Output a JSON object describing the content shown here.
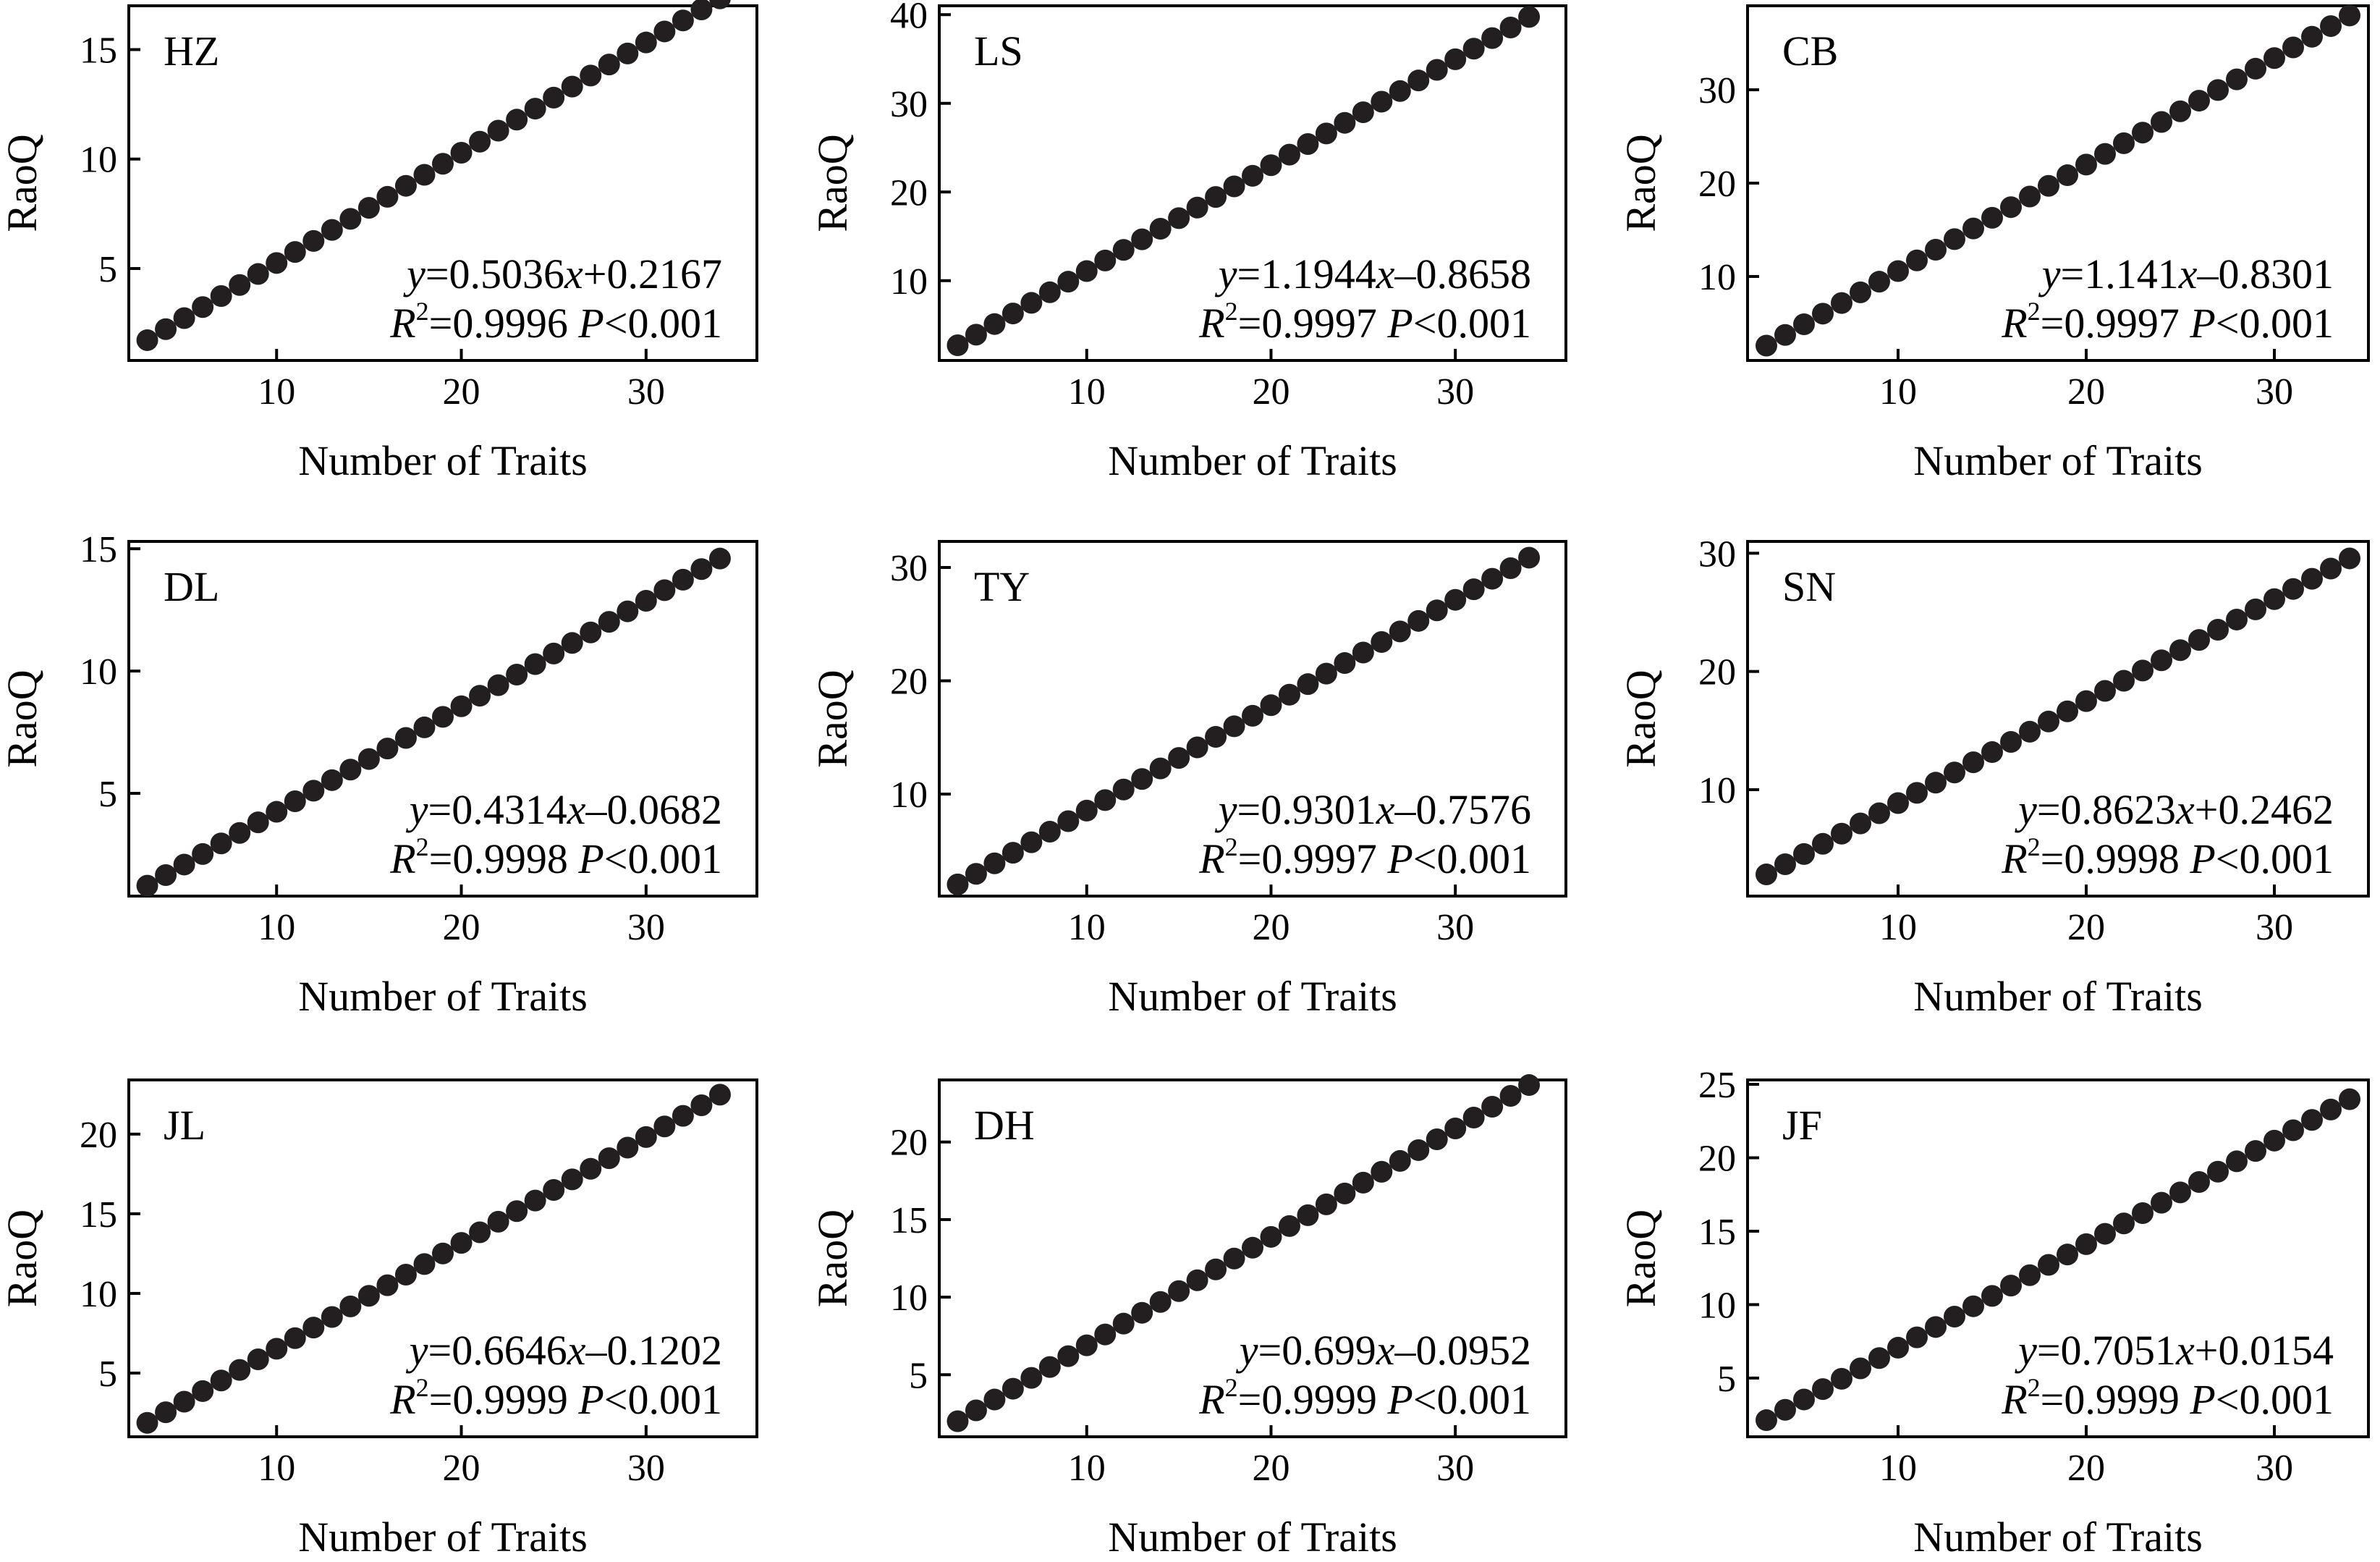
{
  "figure": {
    "domain": "Chart"
  },
  "chart_data": [
    {
      "type": "scatter",
      "site_label": "HZ",
      "xlabel": "Number of Traits",
      "ylabel": "RaoQ",
      "xlim": [
        2,
        36
      ],
      "ylim": [
        0.8,
        17.0
      ],
      "xticks": [
        10,
        20,
        30
      ],
      "yticks": [
        5,
        10,
        15
      ],
      "equation": {
        "y": "y",
        "eq1": "=0.5036",
        "x": "x",
        "eq2": "+0.2167",
        "r": "R",
        "sup": "2",
        "r2": "=0.9996 ",
        "p": "P",
        "pv": "<0.001"
      },
      "fit": {
        "slope": 0.5036,
        "intercept": 0.2167
      },
      "x_range": [
        3,
        34
      ]
    },
    {
      "type": "scatter",
      "site_label": "LS",
      "xlabel": "Number of Traits",
      "ylabel": "RaoQ",
      "xlim": [
        2,
        36
      ],
      "ylim": [
        1.0,
        41.0
      ],
      "xticks": [
        10,
        20,
        30
      ],
      "yticks": [
        10,
        20,
        30,
        40
      ],
      "equation": {
        "y": "y",
        "eq1": "=1.1944",
        "x": "x",
        "eq2": "–0.8658",
        "r": "R",
        "sup": "2",
        "r2": "=0.9997 ",
        "p": "P",
        "pv": "<0.001"
      },
      "fit": {
        "slope": 1.1944,
        "intercept": -0.8658
      },
      "x_range": [
        3,
        34
      ]
    },
    {
      "type": "scatter",
      "site_label": "CB",
      "xlabel": "Number of Traits",
      "ylabel": "RaoQ",
      "xlim": [
        2,
        35
      ],
      "ylim": [
        1.0,
        39.0
      ],
      "xticks": [
        10,
        20,
        30
      ],
      "yticks": [
        10,
        20,
        30
      ],
      "equation": {
        "y": "y",
        "eq1": "=1.141",
        "x": "x",
        "eq2": "–0.8301",
        "r": "R",
        "sup": "2",
        "r2": "=0.9997 ",
        "p": "P",
        "pv": "<0.001"
      },
      "fit": {
        "slope": 1.141,
        "intercept": -0.8301
      },
      "x_range": [
        3,
        34
      ]
    },
    {
      "type": "scatter",
      "site_label": "DL",
      "xlabel": "Number of Traits",
      "ylabel": "RaoQ",
      "xlim": [
        2,
        36
      ],
      "ylim": [
        0.8,
        15.3
      ],
      "xticks": [
        10,
        20,
        30
      ],
      "yticks": [
        5,
        10,
        15
      ],
      "equation": {
        "y": "y",
        "eq1": "=0.4314",
        "x": "x",
        "eq2": "–0.0682",
        "r": "R",
        "sup": "2",
        "r2": "=0.9998 ",
        "p": "P",
        "pv": "<0.001"
      },
      "fit": {
        "slope": 0.4314,
        "intercept": -0.0682
      },
      "x_range": [
        3,
        34
      ]
    },
    {
      "type": "scatter",
      "site_label": "TY",
      "xlabel": "Number of Traits",
      "ylabel": "RaoQ",
      "xlim": [
        2,
        36
      ],
      "ylim": [
        1.0,
        32.3
      ],
      "xticks": [
        10,
        20,
        30
      ],
      "yticks": [
        10,
        20,
        30
      ],
      "equation": {
        "y": "y",
        "eq1": "=0.9301",
        "x": "x",
        "eq2": "–0.7576",
        "r": "R",
        "sup": "2",
        "r2": "=0.9997 ",
        "p": "P",
        "pv": "<0.001"
      },
      "fit": {
        "slope": 0.9301,
        "intercept": -0.7576
      },
      "x_range": [
        3,
        34
      ]
    },
    {
      "type": "scatter",
      "site_label": "SN",
      "xlabel": "Number of Traits",
      "ylabel": "RaoQ",
      "xlim": [
        2,
        35
      ],
      "ylim": [
        1.0,
        31.0
      ],
      "xticks": [
        10,
        20,
        30
      ],
      "yticks": [
        10,
        20,
        30
      ],
      "equation": {
        "y": "y",
        "eq1": "=0.8623",
        "x": "x",
        "eq2": "+0.2462",
        "r": "R",
        "sup": "2",
        "r2": "=0.9998 ",
        "p": "P",
        "pv": "<0.001"
      },
      "fit": {
        "slope": 0.8623,
        "intercept": 0.2462
      },
      "x_range": [
        3,
        34
      ]
    },
    {
      "type": "scatter",
      "site_label": "JL",
      "xlabel": "Number of Traits",
      "ylabel": "RaoQ",
      "xlim": [
        2,
        36
      ],
      "ylim": [
        1.0,
        23.4
      ],
      "xticks": [
        10,
        20,
        30
      ],
      "yticks": [
        5,
        10,
        15,
        20
      ],
      "equation": {
        "y": "y",
        "eq1": "=0.6646",
        "x": "x",
        "eq2": "–0.1202",
        "r": "R",
        "sup": "2",
        "r2": "=0.9999 ",
        "p": "P",
        "pv": "<0.001"
      },
      "fit": {
        "slope": 0.6646,
        "intercept": -0.1202
      },
      "x_range": [
        3,
        34
      ]
    },
    {
      "type": "scatter",
      "site_label": "DH",
      "xlabel": "Number of Traits",
      "ylabel": "RaoQ",
      "xlim": [
        2,
        36
      ],
      "ylim": [
        1.0,
        24.0
      ],
      "xticks": [
        10,
        20,
        30
      ],
      "yticks": [
        5,
        10,
        15,
        20
      ],
      "equation": {
        "y": "y",
        "eq1": "=0.699",
        "x": "x",
        "eq2": "–0.0952",
        "r": "R",
        "sup": "2",
        "r2": "=0.9999 ",
        "p": "P",
        "pv": "<0.001"
      },
      "fit": {
        "slope": 0.699,
        "intercept": -0.0952
      },
      "x_range": [
        3,
        34
      ]
    },
    {
      "type": "scatter",
      "site_label": "JF",
      "xlabel": "Number of Traits",
      "ylabel": "RaoQ",
      "xlim": [
        2,
        35
      ],
      "ylim": [
        1.0,
        25.3
      ],
      "xticks": [
        10,
        20,
        30
      ],
      "yticks": [
        5,
        10,
        15,
        20,
        25
      ],
      "equation": {
        "y": "y",
        "eq1": "=0.7051",
        "x": "x",
        "eq2": "+0.0154",
        "r": "R",
        "sup": "2",
        "r2": "=0.9999 ",
        "p": "P",
        "pv": "<0.001"
      },
      "fit": {
        "slope": 0.7051,
        "intercept": 0.0154
      },
      "x_range": [
        3,
        34
      ]
    }
  ]
}
